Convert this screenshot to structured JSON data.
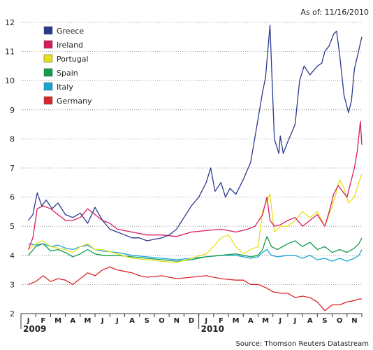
{
  "as_of": "As of: 11/16/2010",
  "source": "Source: Thomson Reuters Datastream",
  "chart_data": {
    "type": "line",
    "title": "",
    "xlabel": "",
    "ylabel": "",
    "ylim": [
      2,
      12
    ],
    "yticks": [
      2,
      3,
      4,
      5,
      6,
      7,
      8,
      9,
      10,
      11,
      12
    ],
    "grid": "horizontal dotted",
    "legend_position": "top-left",
    "x_start": "2009-01-01",
    "month_labels": [
      "J",
      "F",
      "M",
      "A",
      "M",
      "J",
      "J",
      "A",
      "S",
      "O",
      "N",
      "D",
      "J",
      "F",
      "M",
      "A",
      "M",
      "J",
      "J",
      "A",
      "S",
      "O",
      "N"
    ],
    "year_labels": [
      {
        "label": "2009",
        "month_index": 0
      },
      {
        "label": "2010",
        "month_index": 12
      }
    ],
    "series": [
      {
        "name": "Greece",
        "color": "#2b3990",
        "x": [
          0,
          0.3,
          0.6,
          0.9,
          1.2,
          1.6,
          2.0,
          2.5,
          3.0,
          3.5,
          4.0,
          4.5,
          5.0,
          5.5,
          6.0,
          6.5,
          7.0,
          7.5,
          8.0,
          8.5,
          9.0,
          9.5,
          10.0,
          10.5,
          11.0,
          11.5,
          12.0,
          12.3,
          12.6,
          13.0,
          13.3,
          13.6,
          14.0,
          14.5,
          15.0,
          15.5,
          15.8,
          16.0,
          16.3,
          16.6,
          16.9,
          17.0,
          17.2,
          17.5,
          18.0,
          18.3,
          18.6,
          19.0,
          19.5,
          19.8,
          20.0,
          20.3,
          20.6,
          20.8,
          21.0,
          21.3,
          21.6,
          21.8,
          22.0,
          22.5
        ],
        "y": [
          5.2,
          5.4,
          6.15,
          5.7,
          5.9,
          5.6,
          5.8,
          5.4,
          5.3,
          5.45,
          5.1,
          5.65,
          5.2,
          4.9,
          4.8,
          4.7,
          4.6,
          4.6,
          4.5,
          4.55,
          4.6,
          4.7,
          4.9,
          5.3,
          5.7,
          6.0,
          6.5,
          7.0,
          6.2,
          6.5,
          6.0,
          6.3,
          6.1,
          6.6,
          7.2,
          8.7,
          9.6,
          10.1,
          11.9,
          8.0,
          7.5,
          8.1,
          7.5,
          7.9,
          8.5,
          10.0,
          10.5,
          10.2,
          10.5,
          10.6,
          11.0,
          11.2,
          11.6,
          11.7,
          10.9,
          9.5,
          8.9,
          9.3,
          10.4,
          11.5
        ]
      },
      {
        "name": "Ireland",
        "color": "#d81b60",
        "x": [
          0,
          0.3,
          0.6,
          1.0,
          1.5,
          2.0,
          2.5,
          3.0,
          3.5,
          4.0,
          4.5,
          5.0,
          5.5,
          6.0,
          7.0,
          8.0,
          9.0,
          10.0,
          11.0,
          12.0,
          13.0,
          14.0,
          14.8,
          15.3,
          15.8,
          16.1,
          16.3,
          16.6,
          17.0,
          17.5,
          18.0,
          18.5,
          19.0,
          19.5,
          20.0,
          20.3,
          20.6,
          20.9,
          21.2,
          21.5,
          21.8,
          22.0,
          22.2,
          22.4,
          22.5
        ],
        "y": [
          4.2,
          4.6,
          5.6,
          5.7,
          5.6,
          5.4,
          5.2,
          5.2,
          5.3,
          5.6,
          5.4,
          5.2,
          5.1,
          4.9,
          4.8,
          4.7,
          4.7,
          4.65,
          4.8,
          4.85,
          4.9,
          4.8,
          4.9,
          5.0,
          5.4,
          6.0,
          5.2,
          5.0,
          5.05,
          5.2,
          5.3,
          5.0,
          5.2,
          5.4,
          5.0,
          5.5,
          6.1,
          6.4,
          6.2,
          6.0,
          6.6,
          7.0,
          7.6,
          8.6,
          7.8
        ]
      },
      {
        "name": "Portugal",
        "color": "#e8e01a",
        "x": [
          0,
          0.5,
          1.0,
          1.5,
          2.0,
          2.5,
          3.0,
          3.5,
          4.0,
          4.5,
          5.0,
          6.0,
          7.0,
          8.0,
          9.0,
          10.0,
          11.0,
          12.0,
          12.5,
          13.0,
          13.5,
          14.0,
          14.5,
          15.0,
          15.5,
          15.8,
          16.1,
          16.3,
          16.6,
          17.0,
          17.5,
          18.0,
          18.5,
          19.0,
          19.5,
          20.0,
          20.5,
          20.8,
          21.0,
          21.3,
          21.6,
          22.0,
          22.3,
          22.5
        ],
        "y": [
          4.2,
          4.4,
          4.5,
          4.3,
          4.25,
          4.2,
          4.1,
          4.3,
          4.4,
          4.2,
          4.2,
          4.05,
          3.9,
          3.85,
          3.8,
          3.75,
          3.9,
          4.05,
          4.3,
          4.6,
          4.7,
          4.3,
          4.05,
          4.2,
          4.3,
          5.5,
          5.9,
          6.1,
          4.8,
          5.0,
          5.0,
          5.2,
          5.5,
          5.3,
          5.5,
          5.0,
          5.7,
          6.2,
          6.6,
          6.3,
          5.8,
          6.0,
          6.5,
          6.8
        ]
      },
      {
        "name": "Spain",
        "color": "#129c4d",
        "x": [
          0,
          0.5,
          1.0,
          1.5,
          2.0,
          2.5,
          3.0,
          3.5,
          4.0,
          4.5,
          5.0,
          6.0,
          7.0,
          8.0,
          9.0,
          10.0,
          11.0,
          12.0,
          13.0,
          14.0,
          15.0,
          15.5,
          15.8,
          16.1,
          16.4,
          16.8,
          17.5,
          18.0,
          18.5,
          19.0,
          19.5,
          20.0,
          20.5,
          21.0,
          21.5,
          22.0,
          22.3,
          22.5
        ],
        "y": [
          4.0,
          4.3,
          4.4,
          4.15,
          4.2,
          4.1,
          3.95,
          4.05,
          4.2,
          4.05,
          4.0,
          4.0,
          3.95,
          3.9,
          3.85,
          3.8,
          3.85,
          3.95,
          4.0,
          4.05,
          3.95,
          4.0,
          4.2,
          4.65,
          4.3,
          4.2,
          4.4,
          4.5,
          4.3,
          4.45,
          4.2,
          4.3,
          4.1,
          4.2,
          4.1,
          4.25,
          4.4,
          4.6
        ]
      },
      {
        "name": "Italy",
        "color": "#18a5d6",
        "x": [
          0,
          0.5,
          1.0,
          1.5,
          2.0,
          2.5,
          3.0,
          3.5,
          4.0,
          4.5,
          5.0,
          6.0,
          7.0,
          8.0,
          9.0,
          10.0,
          11.0,
          12.0,
          13.0,
          14.0,
          15.0,
          15.5,
          15.8,
          16.1,
          16.4,
          16.8,
          17.5,
          18.0,
          18.5,
          19.0,
          19.5,
          20.0,
          20.5,
          21.0,
          21.5,
          22.0,
          22.3,
          22.5
        ],
        "y": [
          4.4,
          4.35,
          4.4,
          4.3,
          4.35,
          4.25,
          4.2,
          4.3,
          4.35,
          4.2,
          4.15,
          4.1,
          4.0,
          3.95,
          3.9,
          3.85,
          3.9,
          3.95,
          4.0,
          4.0,
          3.9,
          3.95,
          4.1,
          4.2,
          4.0,
          3.95,
          4.0,
          4.0,
          3.9,
          4.0,
          3.85,
          3.9,
          3.8,
          3.9,
          3.8,
          3.9,
          4.0,
          4.2
        ]
      },
      {
        "name": "Germany",
        "color": "#d9262b",
        "x": [
          0,
          0.5,
          1.0,
          1.5,
          2.0,
          2.5,
          3.0,
          3.5,
          4.0,
          4.5,
          5.0,
          5.5,
          6.0,
          6.5,
          7.0,
          7.5,
          8.0,
          9.0,
          10.0,
          11.0,
          12.0,
          13.0,
          14.0,
          14.5,
          15.0,
          15.5,
          16.0,
          16.5,
          17.0,
          17.5,
          18.0,
          18.5,
          19.0,
          19.5,
          20.0,
          20.5,
          21.0,
          21.5,
          22.0,
          22.3,
          22.5
        ],
        "y": [
          3.0,
          3.1,
          3.3,
          3.1,
          3.2,
          3.15,
          3.0,
          3.2,
          3.4,
          3.3,
          3.5,
          3.6,
          3.5,
          3.45,
          3.4,
          3.3,
          3.25,
          3.3,
          3.2,
          3.25,
          3.3,
          3.2,
          3.15,
          3.15,
          3.0,
          3.0,
          2.9,
          2.75,
          2.7,
          2.7,
          2.55,
          2.6,
          2.55,
          2.4,
          2.1,
          2.3,
          2.3,
          2.4,
          2.45,
          2.5,
          2.5
        ]
      }
    ]
  }
}
